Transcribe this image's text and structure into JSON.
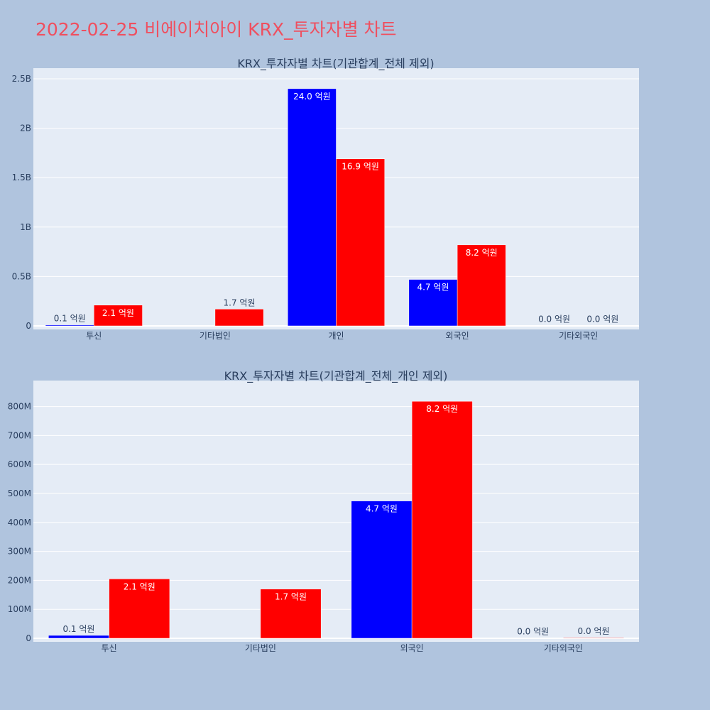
{
  "page_title": "2022-02-25 비에이치아이 KRX_투자자별 차트",
  "colors": {
    "background": "#b0c4de",
    "plot_bg": "#e5ecf6",
    "title": "#ef4f5f",
    "series_1": "#0000ff",
    "series_2": "#ff0000"
  },
  "chart_data": [
    {
      "type": "bar",
      "title": "KRX_투자자별 차트(기관합계_전체 제외)",
      "categories": [
        "투신",
        "기타법인",
        "개인",
        "외국인",
        "기타외국인"
      ],
      "series": [
        {
          "color": "#0000ff",
          "values": [
            10000000,
            0,
            2400000000,
            470000000,
            2000000
          ],
          "labels": [
            "0.1 억원",
            "",
            "24.0 억원",
            "4.7 억원",
            "0.0 억원"
          ]
        },
        {
          "color": "#ff0000",
          "values": [
            210000000,
            170000000,
            1690000000,
            820000000,
            2000000
          ],
          "labels": [
            "2.1 억원",
            "1.7 억원",
            "16.9 억원",
            "8.2 억원",
            "0.0 억원"
          ]
        }
      ],
      "ylim": [
        0,
        2550000000
      ],
      "yticks": [
        0,
        500000000,
        1000000000,
        1500000000,
        2000000000,
        2500000000
      ],
      "ytick_labels": [
        "0",
        "0.5B",
        "1B",
        "1.5B",
        "2B",
        "2.5B"
      ],
      "grid": true
    },
    {
      "type": "bar",
      "title": "KRX_투자자별 차트(기관합계_전체_개인 제외)",
      "categories": [
        "투신",
        "기타법인",
        "외국인",
        "기타외국인"
      ],
      "series": [
        {
          "color": "#0000ff",
          "values": [
            10000000,
            0,
            474000000,
            1000000
          ],
          "labels": [
            "0.1 억원",
            "",
            "4.7 억원",
            "0.0 억원"
          ]
        },
        {
          "color": "#ff0000",
          "values": [
            205000000,
            170000000,
            818000000,
            2000000
          ],
          "labels": [
            "2.1 억원",
            "1.7 억원",
            "8.2 억원",
            "0.0 억원"
          ]
        }
      ],
      "ylim": [
        0,
        870000000
      ],
      "yticks": [
        0,
        100000000,
        200000000,
        300000000,
        400000000,
        500000000,
        600000000,
        700000000,
        800000000
      ],
      "ytick_labels": [
        "0",
        "100M",
        "200M",
        "300M",
        "400M",
        "500M",
        "600M",
        "700M",
        "800M"
      ],
      "grid": true
    }
  ]
}
